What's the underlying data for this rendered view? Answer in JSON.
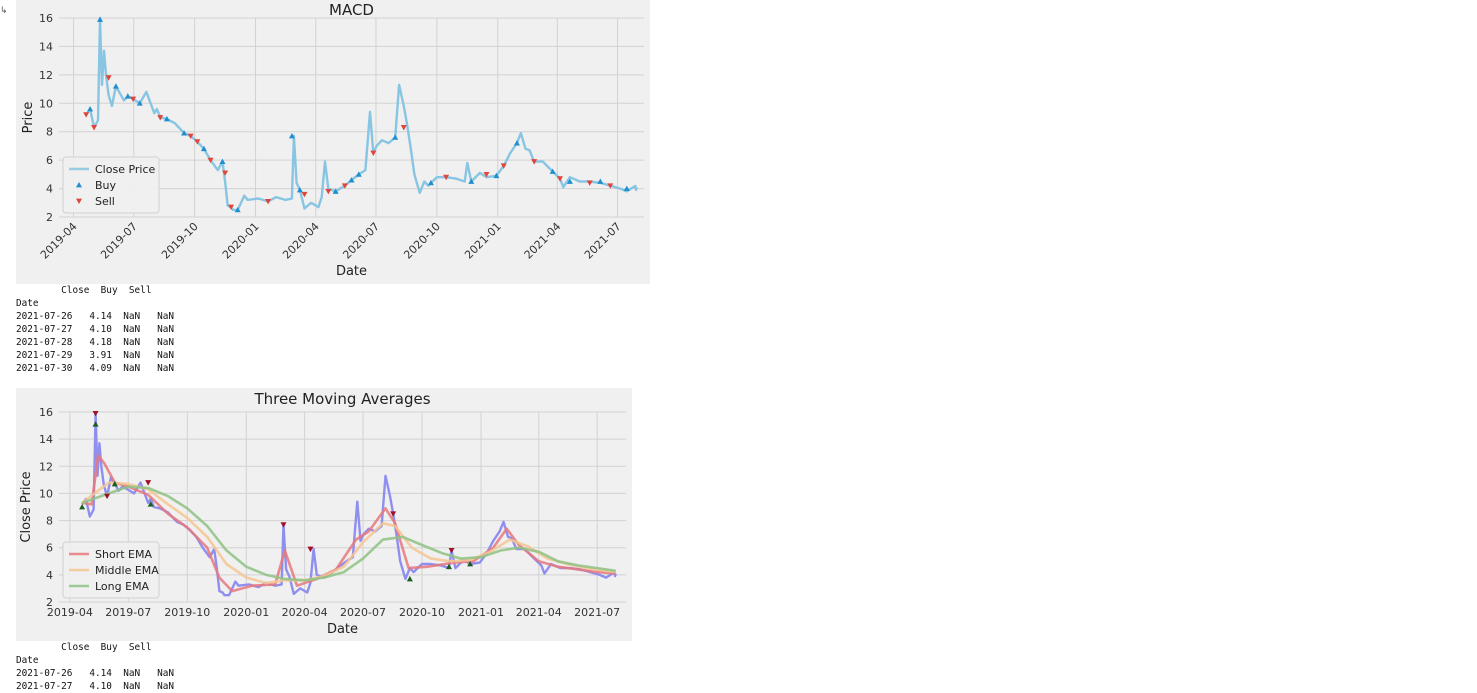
{
  "prompt_marker": "↳",
  "chart_data": [
    {
      "type": "line",
      "title": "MACD",
      "xlabel": "Date",
      "ylabel": "Price",
      "ylim": [
        2,
        16
      ],
      "yticks": [
        2,
        4,
        6,
        8,
        10,
        12,
        14,
        16
      ],
      "xlim": [
        "2019-03-10",
        "2021-08-10"
      ],
      "xticks": [
        "2019-04",
        "2019-07",
        "2019-10",
        "2020-01",
        "2020-04",
        "2020-07",
        "2020-10",
        "2021-01",
        "2021-04",
        "2021-07"
      ],
      "xtick_rotation": 45,
      "grid": true,
      "legend_position": "lower-left",
      "colors": {
        "close": "#87c5e2",
        "buy": "#1f8fd0",
        "sell": "#e0453c",
        "grid": "#d2d2d2"
      },
      "series": [
        {
          "name": "Close Price",
          "kind": "line",
          "x": [
            "2019-04-20",
            "2019-04-26",
            "2019-05-02",
            "2019-05-08",
            "2019-05-11",
            "2019-05-14",
            "2019-05-17",
            "2019-05-20",
            "2019-05-24",
            "2019-05-29",
            "2019-06-04",
            "2019-06-10",
            "2019-06-16",
            "2019-06-22",
            "2019-06-30",
            "2019-07-10",
            "2019-07-20",
            "2019-08-01",
            "2019-08-05",
            "2019-08-10",
            "2019-08-20",
            "2019-09-01",
            "2019-09-15",
            "2019-09-25",
            "2019-10-05",
            "2019-10-15",
            "2019-10-25",
            "2019-11-05",
            "2019-11-12",
            "2019-11-16",
            "2019-11-20",
            "2019-11-25",
            "2019-11-28",
            "2019-12-05",
            "2019-12-15",
            "2019-12-20",
            "2020-01-05",
            "2020-01-20",
            "2020-02-01",
            "2020-02-15",
            "2020-02-25",
            "2020-02-28",
            "2020-03-03",
            "2020-03-08",
            "2020-03-15",
            "2020-03-25",
            "2020-04-05",
            "2020-04-10",
            "2020-04-15",
            "2020-04-20",
            "2020-05-01",
            "2020-05-15",
            "2020-05-25",
            "2020-06-05",
            "2020-06-15",
            "2020-06-22",
            "2020-06-27",
            "2020-07-02",
            "2020-07-10",
            "2020-07-20",
            "2020-07-30",
            "2020-08-05",
            "2020-08-12",
            "2020-08-17",
            "2020-08-22",
            "2020-08-28",
            "2020-09-05",
            "2020-09-12",
            "2020-09-18",
            "2020-09-22",
            "2020-10-01",
            "2020-10-15",
            "2020-10-30",
            "2020-11-12",
            "2020-11-16",
            "2020-11-22",
            "2020-12-05",
            "2020-12-15",
            "2020-12-30",
            "2021-01-10",
            "2021-01-20",
            "2021-01-30",
            "2021-02-05",
            "2021-02-12",
            "2021-02-18",
            "2021-02-25",
            "2021-03-10",
            "2021-03-25",
            "2021-04-05",
            "2021-04-10",
            "2021-04-20",
            "2021-05-05",
            "2021-05-20",
            "2021-06-05",
            "2021-06-20",
            "2021-07-05",
            "2021-07-15",
            "2021-07-26",
            "2021-07-27",
            "2021-07-28",
            "2021-07-29",
            "2021-07-30"
          ],
          "y": [
            9.2,
            9.6,
            8.3,
            8.8,
            15.9,
            11.3,
            13.7,
            12.0,
            10.6,
            9.8,
            11.2,
            10.7,
            10.2,
            10.5,
            10.3,
            10.0,
            10.8,
            9.3,
            9.6,
            9.0,
            8.9,
            8.6,
            7.9,
            7.7,
            7.3,
            6.8,
            6.0,
            5.3,
            5.9,
            4.5,
            2.8,
            2.7,
            2.5,
            2.5,
            3.5,
            3.2,
            3.3,
            3.1,
            3.4,
            3.2,
            3.3,
            7.7,
            4.4,
            3.9,
            2.6,
            3.0,
            2.7,
            3.4,
            5.9,
            4.0,
            3.8,
            4.2,
            4.6,
            5.0,
            5.3,
            9.4,
            6.5,
            7.0,
            7.4,
            7.2,
            7.6,
            11.3,
            9.8,
            8.5,
            7.0,
            5.0,
            3.7,
            4.5,
            4.2,
            4.4,
            4.8,
            4.8,
            4.7,
            4.5,
            5.8,
            4.5,
            5.1,
            4.8,
            4.9,
            5.6,
            6.5,
            7.2,
            7.9,
            6.8,
            6.7,
            5.9,
            5.9,
            5.2,
            4.7,
            4.1,
            4.8,
            4.5,
            4.5,
            4.4,
            4.2,
            4.0,
            3.8,
            4.14,
            4.1,
            4.18,
            3.91,
            4.09
          ]
        },
        {
          "name": "Buy",
          "kind": "marker",
          "x": [
            "2019-04-26",
            "2019-05-11",
            "2019-06-04",
            "2019-06-22",
            "2019-07-10",
            "2019-08-20",
            "2019-09-15",
            "2019-10-15",
            "2019-11-12",
            "2019-12-05",
            "2020-02-25",
            "2020-03-08",
            "2020-05-01",
            "2020-05-25",
            "2020-06-05",
            "2020-07-30",
            "2020-09-22",
            "2020-11-22",
            "2020-12-30",
            "2021-01-30",
            "2021-03-25",
            "2021-04-20",
            "2021-06-05",
            "2021-07-15"
          ],
          "y": [
            9.6,
            15.9,
            11.2,
            10.5,
            10.0,
            8.9,
            7.9,
            6.8,
            5.9,
            2.5,
            7.7,
            3.9,
            3.8,
            4.6,
            5.0,
            7.6,
            4.4,
            4.5,
            4.9,
            7.2,
            5.2,
            4.5,
            4.5,
            4.0
          ]
        },
        {
          "name": "Sell",
          "kind": "marker",
          "x": [
            "2019-04-20",
            "2019-05-02",
            "2019-05-24",
            "2019-06-30",
            "2019-08-10",
            "2019-09-25",
            "2019-10-05",
            "2019-10-25",
            "2019-11-16",
            "2019-11-25",
            "2020-01-20",
            "2020-03-15",
            "2020-04-20",
            "2020-05-15",
            "2020-06-27",
            "2020-08-12",
            "2020-10-15",
            "2020-12-15",
            "2021-01-10",
            "2021-02-25",
            "2021-04-05",
            "2021-05-20",
            "2021-06-20"
          ],
          "y": [
            9.2,
            8.3,
            11.8,
            10.3,
            9.0,
            7.7,
            7.3,
            6.0,
            5.1,
            2.7,
            3.1,
            3.6,
            3.8,
            4.2,
            6.5,
            8.3,
            4.8,
            5.0,
            5.6,
            5.9,
            4.7,
            4.4,
            4.2
          ]
        }
      ]
    },
    {
      "type": "line",
      "title": "Three Moving Averages",
      "xlabel": "Date",
      "ylabel": "Close Price",
      "ylim": [
        2,
        16
      ],
      "yticks": [
        2,
        4,
        6,
        8,
        10,
        12,
        14,
        16
      ],
      "xlim": [
        "2019-03-15",
        "2021-08-15"
      ],
      "xticks": [
        "2019-04",
        "2019-07",
        "2019-10",
        "2020-01",
        "2020-04",
        "2020-07",
        "2020-10",
        "2021-01",
        "2021-04",
        "2021-07"
      ],
      "xtick_rotation": 0,
      "grid": true,
      "legend_position": "lower-left",
      "colors": {
        "close": "#8f8ff0",
        "short": "#e8787c",
        "middle": "#f5c691",
        "long": "#8fc284",
        "buy": "#1b5e20",
        "sell": "#a0102a",
        "grid": "#d2d2d2"
      },
      "series": [
        {
          "name": "",
          "kind": "line",
          "role": "close",
          "x": [
            "2019-04-20",
            "2019-04-26",
            "2019-05-02",
            "2019-05-08",
            "2019-05-11",
            "2019-05-14",
            "2019-05-17",
            "2019-05-20",
            "2019-05-24",
            "2019-05-29",
            "2019-06-04",
            "2019-06-10",
            "2019-06-16",
            "2019-06-22",
            "2019-06-30",
            "2019-07-10",
            "2019-07-20",
            "2019-08-01",
            "2019-08-05",
            "2019-08-10",
            "2019-08-20",
            "2019-09-01",
            "2019-09-15",
            "2019-09-25",
            "2019-10-05",
            "2019-10-15",
            "2019-10-25",
            "2019-11-05",
            "2019-11-12",
            "2019-11-16",
            "2019-11-20",
            "2019-11-25",
            "2019-11-28",
            "2019-12-05",
            "2019-12-15",
            "2019-12-20",
            "2020-01-05",
            "2020-01-20",
            "2020-02-01",
            "2020-02-15",
            "2020-02-25",
            "2020-02-28",
            "2020-03-03",
            "2020-03-08",
            "2020-03-15",
            "2020-03-25",
            "2020-04-05",
            "2020-04-10",
            "2020-04-15",
            "2020-04-20",
            "2020-05-01",
            "2020-05-15",
            "2020-05-25",
            "2020-06-05",
            "2020-06-15",
            "2020-06-22",
            "2020-06-27",
            "2020-07-02",
            "2020-07-10",
            "2020-07-20",
            "2020-07-30",
            "2020-08-05",
            "2020-08-12",
            "2020-08-17",
            "2020-08-22",
            "2020-08-28",
            "2020-09-05",
            "2020-09-12",
            "2020-09-18",
            "2020-09-22",
            "2020-10-01",
            "2020-10-15",
            "2020-10-30",
            "2020-11-12",
            "2020-11-16",
            "2020-11-22",
            "2020-12-05",
            "2020-12-15",
            "2020-12-30",
            "2021-01-10",
            "2021-01-20",
            "2021-01-30",
            "2021-02-05",
            "2021-02-12",
            "2021-02-18",
            "2021-02-25",
            "2021-03-10",
            "2021-03-25",
            "2021-04-05",
            "2021-04-10",
            "2021-04-20",
            "2021-05-05",
            "2021-05-20",
            "2021-06-05",
            "2021-06-20",
            "2021-07-05",
            "2021-07-15",
            "2021-07-26",
            "2021-07-27",
            "2021-07-28",
            "2021-07-29",
            "2021-07-30"
          ],
          "y": [
            9.2,
            9.6,
            8.3,
            8.8,
            15.9,
            11.3,
            13.7,
            12.0,
            10.6,
            9.8,
            11.2,
            10.7,
            10.2,
            10.5,
            10.3,
            10.0,
            10.8,
            9.3,
            9.6,
            9.0,
            8.9,
            8.6,
            7.9,
            7.7,
            7.3,
            6.8,
            6.0,
            5.3,
            5.9,
            4.5,
            2.8,
            2.7,
            2.5,
            2.5,
            3.5,
            3.2,
            3.3,
            3.1,
            3.4,
            3.2,
            3.3,
            7.7,
            4.4,
            3.9,
            2.6,
            3.0,
            2.7,
            3.4,
            5.9,
            4.0,
            3.8,
            4.2,
            4.6,
            5.0,
            5.3,
            9.4,
            6.5,
            7.0,
            7.4,
            7.2,
            7.6,
            11.3,
            9.8,
            8.5,
            7.0,
            5.0,
            3.7,
            4.5,
            4.2,
            4.4,
            4.8,
            4.8,
            4.7,
            4.5,
            5.8,
            4.5,
            5.1,
            4.8,
            4.9,
            5.6,
            6.5,
            7.2,
            7.9,
            6.8,
            6.7,
            5.9,
            5.9,
            5.2,
            4.7,
            4.1,
            4.8,
            4.5,
            4.5,
            4.4,
            4.2,
            4.0,
            3.8,
            4.14,
            4.1,
            4.18,
            3.91,
            4.09
          ]
        },
        {
          "name": "Short EMA",
          "kind": "line",
          "role": "short",
          "x": [
            "2019-04-20",
            "2019-05-05",
            "2019-05-15",
            "2019-05-25",
            "2019-06-10",
            "2019-07-01",
            "2019-08-01",
            "2019-09-01",
            "2019-10-01",
            "2019-11-01",
            "2019-11-20",
            "2019-12-10",
            "2020-01-10",
            "2020-02-15",
            "2020-03-01",
            "2020-03-20",
            "2020-04-20",
            "2020-05-20",
            "2020-06-20",
            "2020-07-10",
            "2020-08-05",
            "2020-08-20",
            "2020-09-10",
            "2020-10-10",
            "2020-11-20",
            "2020-12-20",
            "2021-01-20",
            "2021-02-10",
            "2021-03-01",
            "2021-04-01",
            "2021-05-01",
            "2021-06-01",
            "2021-07-01",
            "2021-07-30"
          ],
          "y": [
            9.3,
            9.2,
            12.8,
            12.2,
            10.8,
            10.5,
            9.9,
            8.5,
            7.5,
            6.0,
            3.8,
            2.8,
            3.2,
            3.3,
            5.8,
            3.2,
            3.7,
            4.4,
            6.6,
            7.2,
            8.9,
            7.8,
            4.5,
            4.6,
            4.9,
            5.0,
            6.0,
            7.4,
            6.2,
            5.0,
            4.6,
            4.4,
            4.2,
            4.1
          ]
        },
        {
          "name": "Middle EMA",
          "kind": "line",
          "role": "middle",
          "x": [
            "2019-04-20",
            "2019-05-15",
            "2019-06-01",
            "2019-07-01",
            "2019-08-01",
            "2019-09-01",
            "2019-10-01",
            "2019-11-01",
            "2019-12-01",
            "2020-01-01",
            "2020-02-01",
            "2020-03-01",
            "2020-04-01",
            "2020-05-01",
            "2020-06-01",
            "2020-07-01",
            "2020-08-01",
            "2020-08-20",
            "2020-09-15",
            "2020-10-15",
            "2020-11-15",
            "2020-12-15",
            "2021-01-15",
            "2021-02-15",
            "2021-03-15",
            "2021-04-15",
            "2021-05-15",
            "2021-06-15",
            "2021-07-30"
          ],
          "y": [
            9.3,
            10.2,
            10.8,
            10.7,
            10.3,
            9.2,
            8.2,
            6.8,
            4.8,
            3.8,
            3.4,
            3.6,
            3.6,
            3.9,
            4.6,
            6.4,
            7.8,
            7.6,
            6.0,
            5.2,
            5.0,
            5.1,
            5.7,
            6.6,
            6.1,
            5.2,
            4.8,
            4.5,
            4.2
          ]
        },
        {
          "name": "Long EMA",
          "kind": "line",
          "role": "long",
          "x": [
            "2019-04-20",
            "2019-06-01",
            "2019-07-01",
            "2019-08-01",
            "2019-09-01",
            "2019-10-01",
            "2019-11-01",
            "2019-12-01",
            "2020-01-01",
            "2020-02-01",
            "2020-03-01",
            "2020-04-01",
            "2020-05-01",
            "2020-06-01",
            "2020-07-01",
            "2020-08-01",
            "2020-09-01",
            "2020-10-01",
            "2020-11-01",
            "2020-12-01",
            "2021-01-01",
            "2021-02-01",
            "2021-03-01",
            "2021-04-01",
            "2021-05-01",
            "2021-06-01",
            "2021-07-30"
          ],
          "y": [
            9.3,
            10.0,
            10.5,
            10.4,
            9.8,
            8.9,
            7.6,
            5.8,
            4.6,
            4.0,
            3.7,
            3.6,
            3.8,
            4.2,
            5.2,
            6.6,
            6.8,
            6.2,
            5.6,
            5.2,
            5.3,
            5.8,
            6.0,
            5.7,
            5.0,
            4.7,
            4.3
          ]
        },
        {
          "name": "",
          "kind": "marker",
          "role": "buy",
          "x": [
            "2019-04-20",
            "2019-05-11",
            "2019-06-10",
            "2019-08-05",
            "2020-09-12",
            "2020-11-12",
            "2020-12-15"
          ],
          "y": [
            9.0,
            15.1,
            10.7,
            9.2,
            3.7,
            4.6,
            4.8
          ]
        },
        {
          "name": "",
          "kind": "marker",
          "role": "sell",
          "x": [
            "2019-05-11",
            "2019-05-29",
            "2019-08-01",
            "2020-02-28",
            "2020-04-10",
            "2020-08-17",
            "2020-11-16"
          ],
          "y": [
            15.9,
            9.8,
            10.8,
            7.7,
            5.9,
            8.5,
            5.8
          ]
        }
      ]
    }
  ],
  "dataframes": [
    {
      "header": "        Close  Buy  Sell",
      "index_name": "Date",
      "rows": [
        "2021-07-26   4.14  NaN   NaN",
        "2021-07-27   4.10  NaN   NaN",
        "2021-07-28   4.18  NaN   NaN",
        "2021-07-29   3.91  NaN   NaN",
        "2021-07-30   4.09  NaN   NaN"
      ]
    },
    {
      "header": "        Close  Buy  Sell",
      "index_name": "Date",
      "rows": [
        "2021-07-26   4.14  NaN   NaN",
        "2021-07-27   4.10  NaN   NaN"
      ]
    }
  ]
}
